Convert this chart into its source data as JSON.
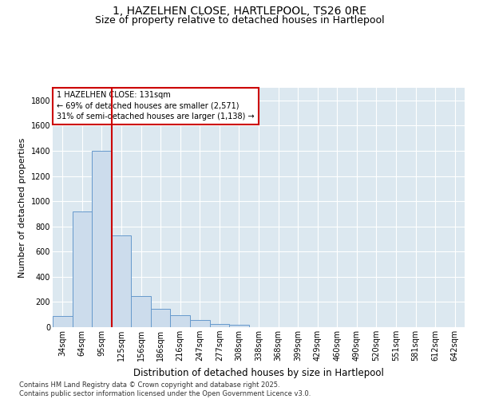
{
  "title": "1, HAZELHEN CLOSE, HARTLEPOOL, TS26 0RE",
  "subtitle": "Size of property relative to detached houses in Hartlepool",
  "xlabel": "Distribution of detached houses by size in Hartlepool",
  "ylabel": "Number of detached properties",
  "categories": [
    "34sqm",
    "64sqm",
    "95sqm",
    "125sqm",
    "156sqm",
    "186sqm",
    "216sqm",
    "247sqm",
    "277sqm",
    "308sqm",
    "338sqm",
    "368sqm",
    "399sqm",
    "429sqm",
    "460sqm",
    "490sqm",
    "520sqm",
    "551sqm",
    "581sqm",
    "612sqm",
    "642sqm"
  ],
  "values": [
    90,
    920,
    1400,
    730,
    250,
    145,
    92,
    55,
    28,
    18,
    0,
    0,
    0,
    0,
    0,
    0,
    0,
    0,
    0,
    0,
    0
  ],
  "bar_color": "#ccdcec",
  "bar_edge_color": "#6699cc",
  "vline_color": "#cc0000",
  "vline_index": 3,
  "annotation_text": "1 HAZELHEN CLOSE: 131sqm\n← 69% of detached houses are smaller (2,571)\n31% of semi-detached houses are larger (1,138) →",
  "annotation_box_color": "#ffffff",
  "annotation_box_edge": "#cc0000",
  "ylim": [
    0,
    1900
  ],
  "yticks": [
    0,
    200,
    400,
    600,
    800,
    1000,
    1200,
    1400,
    1600,
    1800
  ],
  "bg_color": "#dce8f0",
  "footer": "Contains HM Land Registry data © Crown copyright and database right 2025.\nContains public sector information licensed under the Open Government Licence v3.0.",
  "title_fontsize": 10,
  "subtitle_fontsize": 9,
  "ylabel_fontsize": 8,
  "xlabel_fontsize": 8.5,
  "tick_fontsize": 7,
  "annot_fontsize": 7,
  "footer_fontsize": 6
}
